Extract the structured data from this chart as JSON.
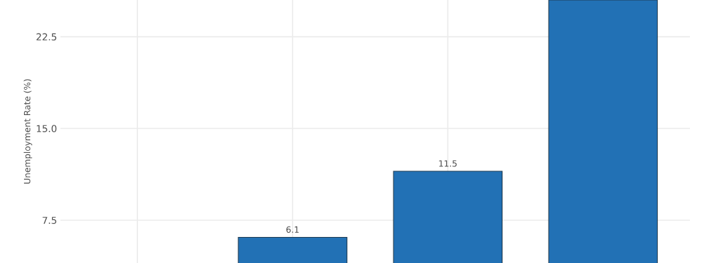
{
  "chart_data": {
    "type": "bar",
    "ylabel": "Unemployment Rate (%)",
    "categories": [
      null,
      null,
      null,
      null
    ],
    "values": [
      null,
      6.1,
      11.5,
      25.5
    ],
    "value_labels": [
      null,
      "6.1",
      "11.5",
      null
    ],
    "color": "#2271b5",
    "ylim": [
      4,
      25.5
    ],
    "yticks": [
      {
        "value": 7.5,
        "label": "7.5"
      },
      {
        "value": 15,
        "label": "15.0"
      },
      {
        "value": 22.5,
        "label": "22.5"
      }
    ],
    "grid": true
  }
}
